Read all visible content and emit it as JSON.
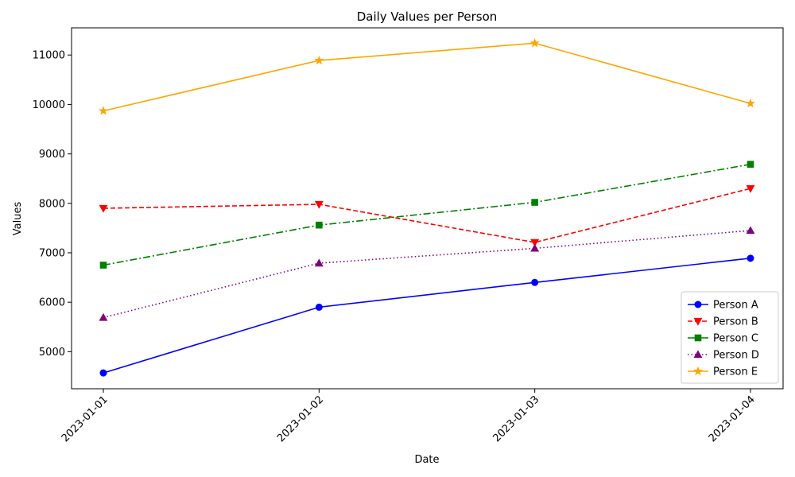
{
  "chart_data": {
    "type": "line",
    "title": "Daily Values per Person",
    "xlabel": "Date",
    "ylabel": "Values",
    "categories": [
      "2023-01-01",
      "2023-01-02",
      "2023-01-03",
      "2023-01-04"
    ],
    "yticks": [
      5000,
      6000,
      7000,
      8000,
      9000,
      10000,
      11000
    ],
    "ylim": [
      4250,
      11550
    ],
    "grid": false,
    "legend_position": "lower-right",
    "series": [
      {
        "name": "Person A",
        "values": [
          4570,
          5900,
          6400,
          6890
        ],
        "color": "#0000ff",
        "marker": "circle",
        "line_style": "solid"
      },
      {
        "name": "Person B",
        "values": [
          7900,
          7980,
          7210,
          8300
        ],
        "color": "#ff0000",
        "marker": "triangle-down",
        "line_style": "dashed"
      },
      {
        "name": "Person C",
        "values": [
          6750,
          7560,
          8020,
          8790
        ],
        "color": "#008000",
        "marker": "square",
        "line_style": "dashdot"
      },
      {
        "name": "Person D",
        "values": [
          5690,
          6790,
          7090,
          7450
        ],
        "color": "#800080",
        "marker": "triangle-up",
        "line_style": "dotted"
      },
      {
        "name": "Person E",
        "values": [
          9870,
          10890,
          11240,
          10020
        ],
        "color": "#ffa500",
        "marker": "star",
        "line_style": "solid"
      }
    ]
  }
}
